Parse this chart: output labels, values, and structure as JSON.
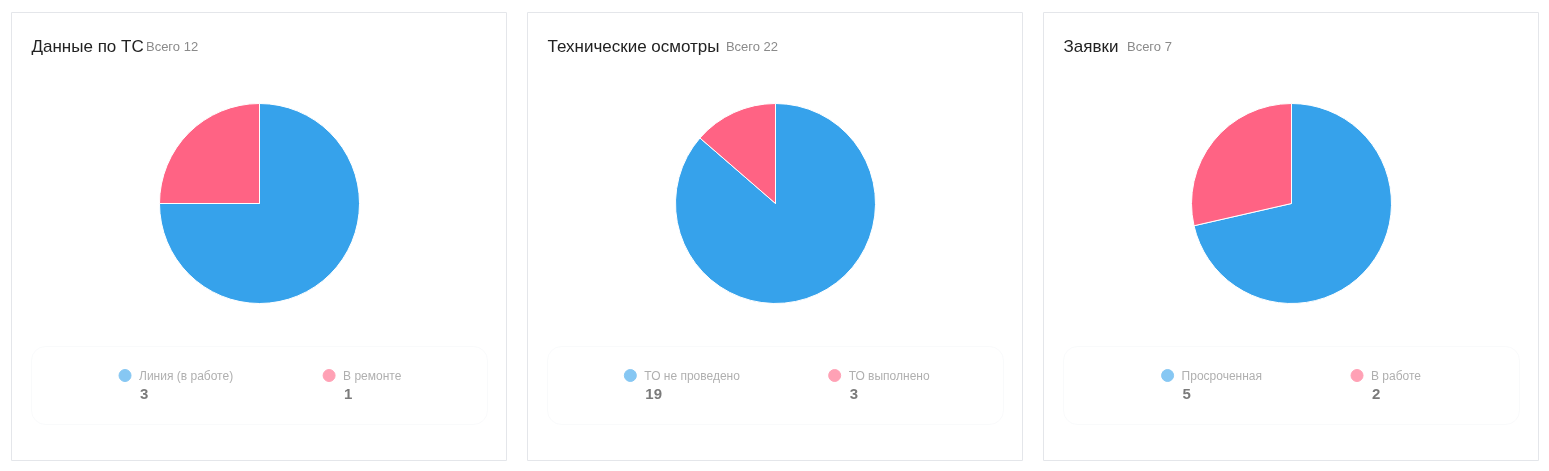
{
  "chart_data": [
    {
      "type": "pie",
      "title": "Данные по ТС",
      "subtitle": "Всего 12",
      "categories": [
        "Линия (в работе)",
        "В ремонте"
      ],
      "values": [
        3,
        1
      ],
      "colors": [
        "#36a2eb",
        "#ff6384"
      ],
      "legend": "bottom",
      "data_labels": true
    },
    {
      "type": "pie",
      "title": "Технические осмотры",
      "subtitle": "Всего 22",
      "categories": [
        "ТО не проведено",
        "ТО выполнено"
      ],
      "values": [
        19,
        3
      ],
      "colors": [
        "#36a2eb",
        "#ff6384"
      ],
      "legend": "bottom",
      "data_labels": true
    },
    {
      "type": "pie",
      "title": "Заявки",
      "subtitle": "Всего 7",
      "categories": [
        "Просроченная",
        "В работе"
      ],
      "values": [
        5,
        2
      ],
      "colors": [
        "#36a2eb",
        "#ff6384"
      ],
      "legend": "bottom",
      "data_labels": true
    }
  ]
}
